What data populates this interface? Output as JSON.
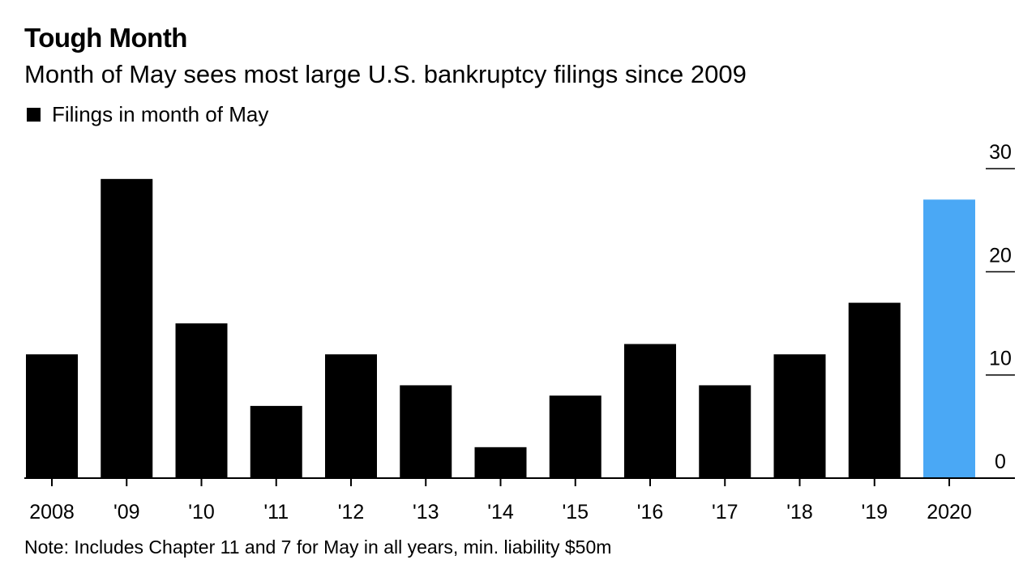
{
  "header": {
    "title": "Tough Month",
    "subtitle": "Month of May sees most large U.S. bankruptcy filings since 2009"
  },
  "legend": {
    "label": "Filings in month of May"
  },
  "note": "Note: Includes Chapter 11 and 7 for May in all years, min. liability $50m",
  "colors": {
    "bar": "#000000",
    "highlight": "#4aa8f5",
    "axis": "#000000"
  },
  "chart_data": {
    "type": "bar",
    "categories": [
      "2008",
      "'09",
      "'10",
      "'11",
      "'12",
      "'13",
      "'14",
      "'15",
      "'16",
      "'17",
      "'18",
      "'19",
      "2020"
    ],
    "series": [
      {
        "values": [
          12,
          29,
          15,
          7,
          12,
          9,
          3,
          8,
          13,
          9,
          12,
          17,
          27
        ]
      }
    ],
    "highlight_category": "2020",
    "yticks": [
      0,
      10,
      20,
      30
    ],
    "ylim": [
      0,
      30
    ],
    "y_axis_position": "right",
    "grid": false,
    "legend_position": "top-left"
  }
}
